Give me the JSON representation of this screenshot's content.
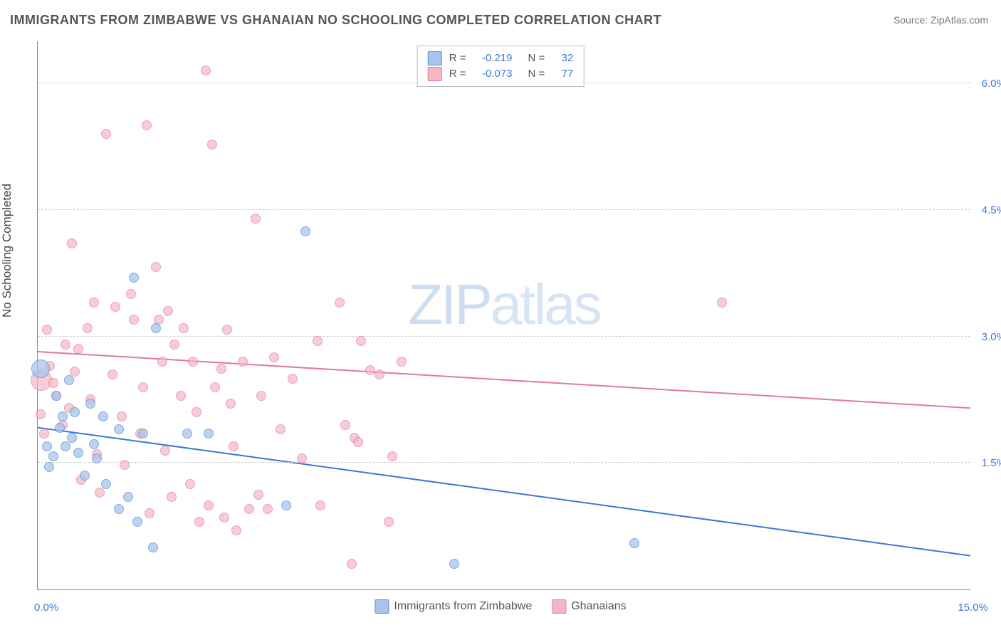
{
  "title": "IMMIGRANTS FROM ZIMBABWE VS GHANAIAN NO SCHOOLING COMPLETED CORRELATION CHART",
  "source_label": "Source: ZipAtlas.com",
  "watermark": {
    "part1": "ZIP",
    "part2": "atlas"
  },
  "ylabel": "No Schooling Completed",
  "chart": {
    "type": "scatter-with-regression",
    "background_color": "#ffffff",
    "grid_color": "#cccccc",
    "axis_color": "#888888",
    "xlim": [
      0.0,
      15.0
    ],
    "ylim": [
      0.0,
      6.5
    ],
    "x_ticks": [
      {
        "value": 0.0,
        "label": "0.0%"
      },
      {
        "value": 15.0,
        "label": "15.0%"
      }
    ],
    "y_ticks": [
      {
        "value": 1.5,
        "label": "1.5%"
      },
      {
        "value": 3.0,
        "label": "3.0%"
      },
      {
        "value": 4.5,
        "label": "4.5%"
      },
      {
        "value": 6.0,
        "label": "6.0%"
      }
    ],
    "tick_color": "#3b78d8",
    "tick_fontsize": 15,
    "label_fontsize": 17,
    "label_color": "#444444",
    "series": [
      {
        "id": "zimbabwe",
        "name": "Immigrants from Zimbabwe",
        "marker_fill": "#a7c5ec",
        "marker_stroke": "#5a8fd6",
        "marker_opacity": 0.75,
        "default_size": 14,
        "R": "-0.219",
        "N": "32",
        "trend": {
          "y_at_x0": 1.92,
          "y_at_xmax": 0.4,
          "stroke": "#3b78d8",
          "width": 2
        },
        "points": [
          {
            "x": 0.05,
            "y": 2.62,
            "s": 26
          },
          {
            "x": 0.18,
            "y": 1.45
          },
          {
            "x": 0.15,
            "y": 1.7
          },
          {
            "x": 0.35,
            "y": 1.92
          },
          {
            "x": 0.45,
            "y": 1.7
          },
          {
            "x": 0.6,
            "y": 2.1
          },
          {
            "x": 0.65,
            "y": 1.62
          },
          {
            "x": 0.55,
            "y": 1.8
          },
          {
            "x": 0.85,
            "y": 2.2
          },
          {
            "x": 0.9,
            "y": 1.72
          },
          {
            "x": 0.95,
            "y": 1.55
          },
          {
            "x": 0.3,
            "y": 2.3
          },
          {
            "x": 0.5,
            "y": 2.48
          },
          {
            "x": 1.1,
            "y": 1.25
          },
          {
            "x": 1.3,
            "y": 0.95
          },
          {
            "x": 1.6,
            "y": 0.8
          },
          {
            "x": 1.85,
            "y": 0.5
          },
          {
            "x": 1.55,
            "y": 3.7
          },
          {
            "x": 1.3,
            "y": 1.9
          },
          {
            "x": 1.7,
            "y": 1.85
          },
          {
            "x": 1.9,
            "y": 3.1
          },
          {
            "x": 2.4,
            "y": 1.85
          },
          {
            "x": 2.75,
            "y": 1.85
          },
          {
            "x": 4.3,
            "y": 4.25
          },
          {
            "x": 4.0,
            "y": 1.0
          },
          {
            "x": 6.7,
            "y": 0.3
          },
          {
            "x": 9.6,
            "y": 0.55
          },
          {
            "x": 0.75,
            "y": 1.35
          },
          {
            "x": 0.4,
            "y": 2.05
          },
          {
            "x": 1.05,
            "y": 2.05
          },
          {
            "x": 0.25,
            "y": 1.58
          },
          {
            "x": 1.45,
            "y": 1.1
          }
        ]
      },
      {
        "id": "ghanaian",
        "name": "Ghanaians",
        "marker_fill": "#f4b7c6",
        "marker_stroke": "#e37a95",
        "marker_opacity": 0.7,
        "default_size": 14,
        "R": "-0.073",
        "N": "77",
        "trend": {
          "y_at_x0": 2.82,
          "y_at_xmax": 2.15,
          "stroke": "#e37a95",
          "width": 2
        },
        "points": [
          {
            "x": 0.06,
            "y": 2.48,
            "s": 30
          },
          {
            "x": 0.15,
            "y": 3.08
          },
          {
            "x": 0.3,
            "y": 2.3
          },
          {
            "x": 0.45,
            "y": 2.9
          },
          {
            "x": 0.55,
            "y": 4.1
          },
          {
            "x": 0.65,
            "y": 2.85
          },
          {
            "x": 0.8,
            "y": 3.1
          },
          {
            "x": 0.85,
            "y": 2.25
          },
          {
            "x": 0.95,
            "y": 1.6
          },
          {
            "x": 1.1,
            "y": 5.4
          },
          {
            "x": 1.25,
            "y": 3.35
          },
          {
            "x": 1.35,
            "y": 2.05
          },
          {
            "x": 1.5,
            "y": 3.5
          },
          {
            "x": 1.55,
            "y": 3.2
          },
          {
            "x": 1.65,
            "y": 1.85
          },
          {
            "x": 1.75,
            "y": 5.5
          },
          {
            "x": 1.8,
            "y": 0.9
          },
          {
            "x": 1.9,
            "y": 3.82
          },
          {
            "x": 1.95,
            "y": 3.2
          },
          {
            "x": 2.0,
            "y": 2.7
          },
          {
            "x": 2.1,
            "y": 3.3
          },
          {
            "x": 2.15,
            "y": 1.1
          },
          {
            "x": 2.2,
            "y": 2.9
          },
          {
            "x": 2.3,
            "y": 2.3
          },
          {
            "x": 2.35,
            "y": 3.1
          },
          {
            "x": 2.45,
            "y": 1.25
          },
          {
            "x": 2.5,
            "y": 2.7
          },
          {
            "x": 2.6,
            "y": 0.8
          },
          {
            "x": 2.7,
            "y": 6.15
          },
          {
            "x": 2.75,
            "y": 1.0
          },
          {
            "x": 2.8,
            "y": 5.28
          },
          {
            "x": 2.85,
            "y": 2.4
          },
          {
            "x": 2.95,
            "y": 2.62
          },
          {
            "x": 3.0,
            "y": 0.85
          },
          {
            "x": 3.05,
            "y": 3.08
          },
          {
            "x": 3.1,
            "y": 2.2
          },
          {
            "x": 3.2,
            "y": 0.7
          },
          {
            "x": 3.3,
            "y": 2.7
          },
          {
            "x": 3.4,
            "y": 0.95
          },
          {
            "x": 3.5,
            "y": 4.4
          },
          {
            "x": 3.55,
            "y": 1.12
          },
          {
            "x": 3.6,
            "y": 2.3
          },
          {
            "x": 3.7,
            "y": 0.95
          },
          {
            "x": 3.9,
            "y": 1.9
          },
          {
            "x": 4.1,
            "y": 2.5
          },
          {
            "x": 4.25,
            "y": 1.55
          },
          {
            "x": 4.5,
            "y": 2.95
          },
          {
            "x": 4.55,
            "y": 1.0
          },
          {
            "x": 4.85,
            "y": 3.4
          },
          {
            "x": 4.95,
            "y": 1.95
          },
          {
            "x": 5.05,
            "y": 0.3
          },
          {
            "x": 5.1,
            "y": 1.8
          },
          {
            "x": 5.15,
            "y": 1.75
          },
          {
            "x": 5.2,
            "y": 2.95
          },
          {
            "x": 5.35,
            "y": 2.6
          },
          {
            "x": 5.5,
            "y": 2.55
          },
          {
            "x": 5.65,
            "y": 0.8
          },
          {
            "x": 5.7,
            "y": 1.58
          },
          {
            "x": 5.85,
            "y": 2.7
          },
          {
            "x": 11.0,
            "y": 3.4
          },
          {
            "x": 0.05,
            "y": 2.08
          },
          {
            "x": 0.2,
            "y": 2.65
          },
          {
            "x": 0.4,
            "y": 1.95
          },
          {
            "x": 0.6,
            "y": 2.58
          },
          {
            "x": 0.7,
            "y": 1.3
          },
          {
            "x": 1.0,
            "y": 1.15
          },
          {
            "x": 1.2,
            "y": 2.55
          },
          {
            "x": 1.4,
            "y": 1.48
          },
          {
            "x": 0.5,
            "y": 2.15
          },
          {
            "x": 0.9,
            "y": 3.4
          },
          {
            "x": 1.7,
            "y": 2.4
          },
          {
            "x": 2.05,
            "y": 1.65
          },
          {
            "x": 2.55,
            "y": 2.1
          },
          {
            "x": 3.15,
            "y": 1.7
          },
          {
            "x": 3.8,
            "y": 2.75
          },
          {
            "x": 0.1,
            "y": 1.85
          },
          {
            "x": 0.25,
            "y": 2.45
          }
        ]
      }
    ],
    "top_legend": {
      "border_color": "#bbbbbb",
      "rows": [
        {
          "swatch_series": "zimbabwe",
          "r_label": "R =",
          "n_label": "N ="
        },
        {
          "swatch_series": "ghanaian",
          "r_label": "R =",
          "n_label": "N ="
        }
      ]
    },
    "bottom_legend_fontsize": 16
  }
}
